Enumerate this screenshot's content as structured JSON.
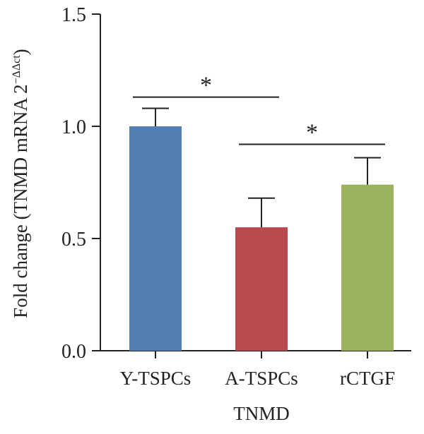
{
  "chart_data": {
    "type": "bar",
    "title": "",
    "xlabel": "TNMD",
    "ylabel": "Fold change (TNMD mRNA 2",
    "ylabel_superscript": "−ΔΔct",
    "ylabel_close": ")",
    "categories": [
      "Y-TSPCs",
      "A-TSPCs",
      "rCTGF"
    ],
    "values": [
      1.0,
      0.55,
      0.74
    ],
    "errors": [
      0.08,
      0.13,
      0.12
    ],
    "colors": [
      "#527fb4",
      "#b84a4e",
      "#9bb35d"
    ],
    "ylim": [
      0,
      1.5
    ],
    "yticks": [
      "0.0",
      "0.5",
      "1.0",
      "1.5"
    ],
    "grid": false,
    "significance": [
      {
        "from": 0,
        "to": 1,
        "y": 1.13,
        "label": "*"
      },
      {
        "from": 1,
        "to": 2,
        "y": 0.92,
        "label": "*"
      }
    ]
  }
}
